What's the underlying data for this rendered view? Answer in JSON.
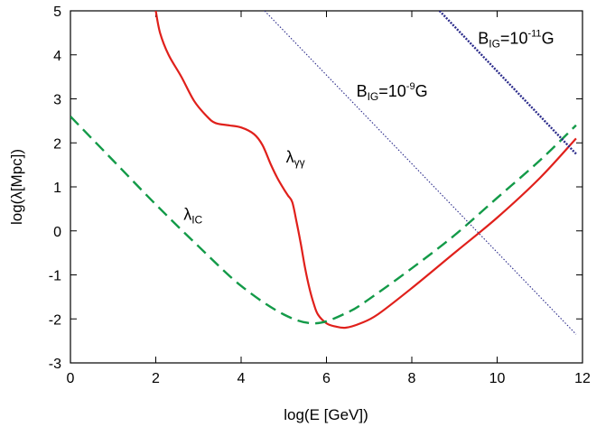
{
  "chart_data": {
    "type": "line",
    "xlabel": "log(E [GeV])",
    "ylabel": "log(λ[Mpc])",
    "xlim": [
      0,
      12
    ],
    "ylim": [
      -3,
      5
    ],
    "xticks": [
      0,
      2,
      4,
      6,
      8,
      10,
      12
    ],
    "yticks": [
      -3,
      -2,
      -1,
      0,
      1,
      2,
      3,
      4,
      5
    ],
    "grid": false,
    "legend": "none",
    "series": [
      {
        "name": "λγγ",
        "color": "#e0201b",
        "style": "solid",
        "x": [
          2.0,
          2.1,
          2.3,
          2.6,
          2.9,
          3.2,
          3.4,
          3.7,
          4.0,
          4.3,
          4.5,
          4.7,
          4.85,
          5.0,
          5.1,
          5.2,
          5.3,
          5.4,
          5.5,
          5.6,
          5.7,
          5.8,
          6.0,
          6.2,
          6.45,
          6.8,
          7.2,
          8.0,
          9.0,
          10.0,
          11.0,
          11.85
        ],
        "y": [
          5.0,
          4.5,
          4.0,
          3.5,
          2.95,
          2.6,
          2.45,
          2.4,
          2.35,
          2.2,
          1.95,
          1.5,
          1.2,
          0.95,
          0.8,
          0.65,
          0.2,
          -0.3,
          -0.85,
          -1.3,
          -1.65,
          -1.9,
          -2.1,
          -2.17,
          -2.2,
          -2.1,
          -1.9,
          -1.3,
          -0.5,
          0.3,
          1.2,
          2.1
        ]
      },
      {
        "name": "λIC",
        "color": "#139a48",
        "style": "dashed",
        "x": [
          0.0,
          1.0,
          2.0,
          3.0,
          4.0,
          5.0,
          5.75,
          6.5,
          7.0,
          8.0,
          9.0,
          10.0,
          11.0,
          11.85
        ],
        "y": [
          2.6,
          1.6,
          0.6,
          -0.35,
          -1.25,
          -1.9,
          -2.1,
          -1.85,
          -1.55,
          -0.85,
          -0.1,
          0.75,
          1.6,
          2.4
        ]
      },
      {
        "name": "BIG=10-9G",
        "color": "#2a2a8a",
        "style": "dotted",
        "x": [
          4.55,
          11.85
        ],
        "y": [
          5.0,
          -2.35
        ]
      },
      {
        "name": "BIG=10-11G",
        "color": "#2a2a8a",
        "style": "dotted-thick",
        "x": [
          8.65,
          11.85
        ],
        "y": [
          5.0,
          1.75
        ]
      }
    ],
    "annotations": [
      {
        "id": "lgg",
        "main": "λ",
        "sub": "γγ",
        "x": 5.05,
        "y": 1.55
      },
      {
        "id": "lic",
        "main": "λ",
        "sub": "IC",
        "x": 2.65,
        "y": 0.25
      },
      {
        "id": "b9",
        "main": "B",
        "sub": "IG",
        "rest": "=10",
        "sup": "-9",
        "tail": "G",
        "x": 6.7,
        "y": 3.05
      },
      {
        "id": "b11",
        "main": "B",
        "sub": "IG",
        "rest": "=10",
        "sup": "-11",
        "tail": "G",
        "x": 9.55,
        "y": 4.25
      }
    ]
  }
}
